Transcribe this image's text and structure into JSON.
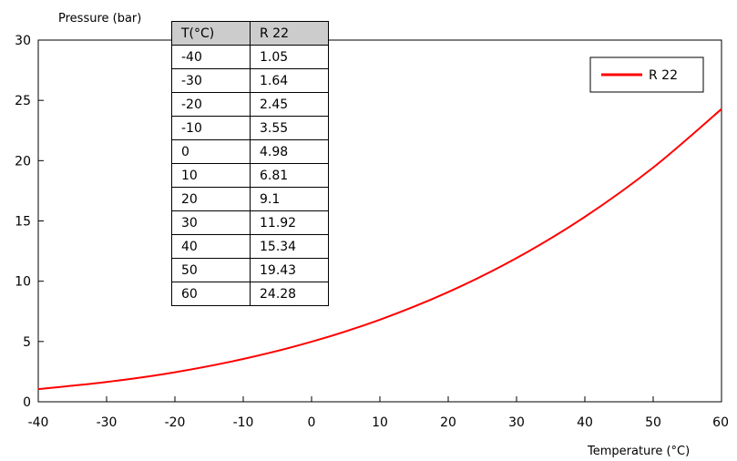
{
  "chart_data": {
    "type": "line",
    "xlabel": "Temperature (°C)",
    "ylabel": "Pressure (bar)",
    "xlim": [
      -40,
      60
    ],
    "ylim": [
      0,
      30
    ],
    "x_ticks": [
      "-40",
      "-30",
      "-20",
      "-10",
      "0",
      "10",
      "20",
      "30",
      "40",
      "50",
      "60"
    ],
    "y_ticks": [
      "0",
      "5",
      "10",
      "15",
      "20",
      "25",
      "30"
    ],
    "grid": false,
    "legend_position": "top-right",
    "series": [
      {
        "name": "R 22",
        "color": "#ff0000",
        "x": [
          -40,
          -30,
          -20,
          -10,
          0,
          10,
          20,
          30,
          40,
          50,
          60
        ],
        "y": [
          1.05,
          1.64,
          2.45,
          3.55,
          4.98,
          6.81,
          9.1,
          11.92,
          15.34,
          19.43,
          24.28
        ]
      }
    ],
    "table": {
      "headers": [
        "T(°C)",
        "R 22"
      ],
      "rows": [
        [
          "-40",
          "1.05"
        ],
        [
          "-30",
          "1.64"
        ],
        [
          "-20",
          "2.45"
        ],
        [
          "-10",
          "3.55"
        ],
        [
          "0",
          "4.98"
        ],
        [
          "10",
          "6.81"
        ],
        [
          "20",
          "9.1"
        ],
        [
          "30",
          "11.92"
        ],
        [
          "40",
          "15.34"
        ],
        [
          "50",
          "19.43"
        ],
        [
          "60",
          "24.28"
        ]
      ]
    }
  }
}
